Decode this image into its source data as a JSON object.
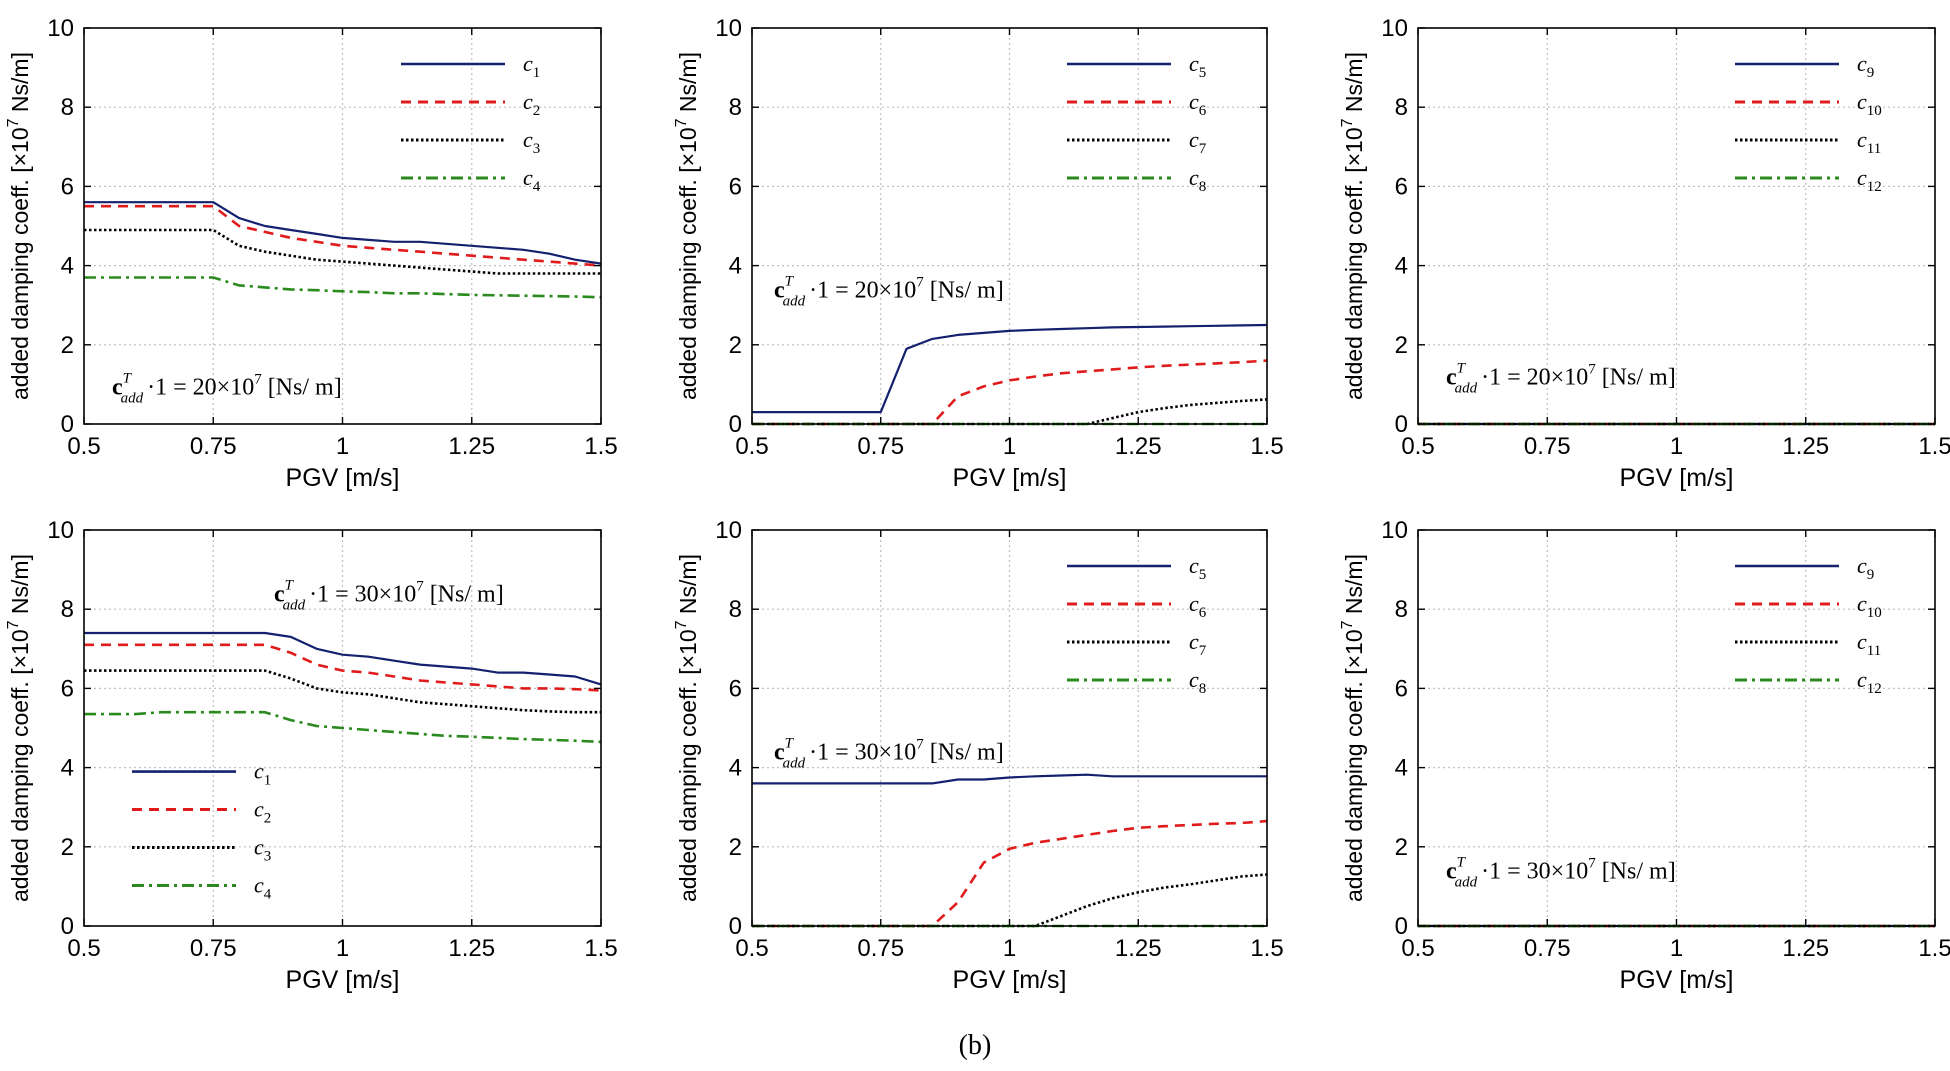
{
  "figure_caption": "(b)",
  "colors": {
    "c_blue": "#13216e",
    "c_red": "#e01b1b",
    "c_black": "#000000",
    "c_green": "#2a8a1e",
    "grid": "#bfbfbf"
  },
  "chart_data": [
    {
      "type": "line",
      "x": [
        0.5,
        0.55,
        0.6,
        0.65,
        0.7,
        0.75,
        0.8,
        0.85,
        0.9,
        0.95,
        1.0,
        1.05,
        1.1,
        1.15,
        1.2,
        1.25,
        1.3,
        1.35,
        1.4,
        1.45,
        1.5
      ],
      "xlabel": "PGV [m/s]",
      "ylabel": "added damping coeff. [×10^7 Ns/m]",
      "xlim": [
        0.5,
        1.5
      ],
      "ylim": [
        0,
        10
      ],
      "xticks": [
        "0.5",
        "0.75",
        "1",
        "1.25",
        "1.5"
      ],
      "yticks": [
        "0",
        "2",
        "4",
        "6",
        "8",
        "10"
      ],
      "grid": true,
      "legend_position": "top-right",
      "annotation": {
        "prefix": "c",
        "sup": "T",
        "sub": "add",
        "rest": "·1 = 20×10",
        "exp": "7",
        "unit": " [Ns/ m]"
      },
      "series": [
        {
          "name": "c1",
          "label": "c",
          "sub": "1",
          "style": "solid",
          "values": [
            5.6,
            5.6,
            5.6,
            5.6,
            5.6,
            5.6,
            5.2,
            5.0,
            4.9,
            4.8,
            4.7,
            4.65,
            4.6,
            4.6,
            4.55,
            4.5,
            4.45,
            4.4,
            4.3,
            4.15,
            4.05
          ]
        },
        {
          "name": "c2",
          "label": "c",
          "sub": "2",
          "style": "dashed",
          "values": [
            5.5,
            5.5,
            5.5,
            5.5,
            5.5,
            5.5,
            5.0,
            4.85,
            4.7,
            4.6,
            4.5,
            4.45,
            4.4,
            4.35,
            4.3,
            4.25,
            4.2,
            4.15,
            4.1,
            4.05,
            4.0
          ]
        },
        {
          "name": "c3",
          "label": "c",
          "sub": "3",
          "style": "dotted",
          "values": [
            4.9,
            4.9,
            4.9,
            4.9,
            4.9,
            4.9,
            4.5,
            4.35,
            4.25,
            4.15,
            4.1,
            4.05,
            4.0,
            3.95,
            3.9,
            3.85,
            3.8,
            3.8,
            3.8,
            3.8,
            3.8
          ]
        },
        {
          "name": "c4",
          "label": "c",
          "sub": "4",
          "style": "dashdot",
          "values": [
            3.7,
            3.7,
            3.7,
            3.7,
            3.7,
            3.7,
            3.5,
            3.45,
            3.4,
            3.38,
            3.35,
            3.33,
            3.3,
            3.3,
            3.28,
            3.26,
            3.25,
            3.24,
            3.23,
            3.22,
            3.2
          ]
        }
      ]
    },
    {
      "type": "line",
      "x": [
        0.5,
        0.55,
        0.6,
        0.65,
        0.7,
        0.75,
        0.8,
        0.85,
        0.9,
        0.95,
        1.0,
        1.05,
        1.1,
        1.15,
        1.2,
        1.25,
        1.3,
        1.35,
        1.4,
        1.45,
        1.5
      ],
      "xlabel": "PGV [m/s]",
      "ylabel": "added damping coeff. [×10^7 Ns/m]",
      "xlim": [
        0.5,
        1.5
      ],
      "ylim": [
        0,
        10
      ],
      "xticks": [
        "0.5",
        "0.75",
        "1",
        "1.25",
        "1.5"
      ],
      "yticks": [
        "0",
        "2",
        "4",
        "6",
        "8",
        "10"
      ],
      "grid": true,
      "legend_position": "top-right",
      "annotation": {
        "prefix": "c",
        "sup": "T",
        "sub": "add",
        "rest": "·1 = 20×10",
        "exp": "7",
        "unit": " [Ns/ m]"
      },
      "series": [
        {
          "name": "c5",
          "label": "c",
          "sub": "5",
          "style": "solid",
          "values": [
            0.3,
            0.3,
            0.3,
            0.3,
            0.3,
            0.3,
            1.9,
            2.15,
            2.25,
            2.3,
            2.35,
            2.38,
            2.4,
            2.42,
            2.44,
            2.45,
            2.46,
            2.47,
            2.48,
            2.49,
            2.5
          ]
        },
        {
          "name": "c6",
          "label": "c",
          "sub": "6",
          "style": "dashed",
          "values": [
            0,
            0,
            0,
            0,
            0,
            0,
            0,
            0,
            0.7,
            0.95,
            1.1,
            1.2,
            1.28,
            1.33,
            1.38,
            1.43,
            1.47,
            1.5,
            1.53,
            1.56,
            1.6
          ]
        },
        {
          "name": "c7",
          "label": "c",
          "sub": "7",
          "style": "dotted",
          "values": [
            0,
            0,
            0,
            0,
            0,
            0,
            0,
            0,
            0,
            0,
            0,
            0,
            0,
            0,
            0.15,
            0.3,
            0.4,
            0.48,
            0.53,
            0.58,
            0.62
          ]
        },
        {
          "name": "c8",
          "label": "c",
          "sub": "8",
          "style": "dashdot",
          "values": [
            0,
            0,
            0,
            0,
            0,
            0,
            0,
            0,
            0,
            0,
            0,
            0,
            0,
            0,
            0,
            0,
            0,
            0,
            0,
            0,
            0
          ]
        }
      ]
    },
    {
      "type": "line",
      "x": [
        0.5,
        0.55,
        0.6,
        0.65,
        0.7,
        0.75,
        0.8,
        0.85,
        0.9,
        0.95,
        1.0,
        1.05,
        1.1,
        1.15,
        1.2,
        1.25,
        1.3,
        1.35,
        1.4,
        1.45,
        1.5
      ],
      "xlabel": "PGV [m/s]",
      "ylabel": "added damping coeff. [×10^7 Ns/m]",
      "xlim": [
        0.5,
        1.5
      ],
      "ylim": [
        0,
        10
      ],
      "xticks": [
        "0.5",
        "0.75",
        "1",
        "1.25",
        "1.5"
      ],
      "yticks": [
        "0",
        "2",
        "4",
        "6",
        "8",
        "10"
      ],
      "grid": true,
      "legend_position": "top-right",
      "annotation": {
        "prefix": "c",
        "sup": "T",
        "sub": "add",
        "rest": "·1 = 20×10",
        "exp": "7",
        "unit": " [Ns/ m]"
      },
      "series": [
        {
          "name": "c9",
          "label": "c",
          "sub": "9",
          "style": "solid",
          "values": [
            0,
            0,
            0,
            0,
            0,
            0,
            0,
            0,
            0,
            0,
            0,
            0,
            0,
            0,
            0,
            0,
            0,
            0,
            0,
            0,
            0
          ]
        },
        {
          "name": "c10",
          "label": "c",
          "sub": "10",
          "style": "dashed",
          "values": [
            0,
            0,
            0,
            0,
            0,
            0,
            0,
            0,
            0,
            0,
            0,
            0,
            0,
            0,
            0,
            0,
            0,
            0,
            0,
            0,
            0
          ]
        },
        {
          "name": "c11",
          "label": "c",
          "sub": "11",
          "style": "dotted",
          "values": [
            0,
            0,
            0,
            0,
            0,
            0,
            0,
            0,
            0,
            0,
            0,
            0,
            0,
            0,
            0,
            0,
            0,
            0,
            0,
            0,
            0
          ]
        },
        {
          "name": "c12",
          "label": "c",
          "sub": "12",
          "style": "dashdot",
          "values": [
            0,
            0,
            0,
            0,
            0,
            0,
            0,
            0,
            0,
            0,
            0,
            0,
            0,
            0,
            0,
            0,
            0,
            0,
            0,
            0,
            0
          ]
        }
      ]
    },
    {
      "type": "line",
      "x": [
        0.5,
        0.55,
        0.6,
        0.65,
        0.7,
        0.75,
        0.8,
        0.85,
        0.9,
        0.95,
        1.0,
        1.05,
        1.1,
        1.15,
        1.2,
        1.25,
        1.3,
        1.35,
        1.4,
        1.45,
        1.5
      ],
      "xlabel": "PGV [m/s]",
      "ylabel": "added damping coeff. [×10^7 Ns/m]",
      "xlim": [
        0.5,
        1.5
      ],
      "ylim": [
        0,
        10
      ],
      "xticks": [
        "0.5",
        "0.75",
        "1",
        "1.25",
        "1.5"
      ],
      "yticks": [
        "0",
        "2",
        "4",
        "6",
        "8",
        "10"
      ],
      "grid": true,
      "legend_position": "bottom-left",
      "annotation": {
        "prefix": "c",
        "sup": "T",
        "sub": "add",
        "rest": "·1 = 30×10",
        "exp": "7",
        "unit": " [Ns/ m]"
      },
      "series": [
        {
          "name": "c1",
          "label": "c",
          "sub": "1",
          "style": "solid",
          "values": [
            7.4,
            7.4,
            7.4,
            7.4,
            7.4,
            7.4,
            7.4,
            7.4,
            7.3,
            7.0,
            6.85,
            6.8,
            6.7,
            6.6,
            6.55,
            6.5,
            6.4,
            6.4,
            6.35,
            6.3,
            6.1
          ]
        },
        {
          "name": "c2",
          "label": "c",
          "sub": "2",
          "style": "dashed",
          "values": [
            7.1,
            7.1,
            7.1,
            7.1,
            7.1,
            7.1,
            7.1,
            7.1,
            6.9,
            6.6,
            6.45,
            6.4,
            6.3,
            6.2,
            6.15,
            6.1,
            6.05,
            6.0,
            6.0,
            5.98,
            5.95
          ]
        },
        {
          "name": "c3",
          "label": "c",
          "sub": "3",
          "style": "dotted",
          "values": [
            6.45,
            6.45,
            6.45,
            6.45,
            6.45,
            6.45,
            6.45,
            6.45,
            6.25,
            6.0,
            5.9,
            5.85,
            5.75,
            5.65,
            5.6,
            5.55,
            5.5,
            5.45,
            5.42,
            5.4,
            5.4
          ]
        },
        {
          "name": "c4",
          "label": "c",
          "sub": "4",
          "style": "dashdot",
          "values": [
            5.35,
            5.35,
            5.35,
            5.4,
            5.4,
            5.4,
            5.4,
            5.4,
            5.2,
            5.05,
            5.0,
            4.95,
            4.9,
            4.85,
            4.8,
            4.78,
            4.75,
            4.72,
            4.7,
            4.68,
            4.65
          ]
        }
      ]
    },
    {
      "type": "line",
      "x": [
        0.5,
        0.55,
        0.6,
        0.65,
        0.7,
        0.75,
        0.8,
        0.85,
        0.9,
        0.95,
        1.0,
        1.05,
        1.1,
        1.15,
        1.2,
        1.25,
        1.3,
        1.35,
        1.4,
        1.45,
        1.5
      ],
      "xlabel": "PGV [m/s]",
      "ylabel": "added damping coeff. [×10^7 Ns/m]",
      "xlim": [
        0.5,
        1.5
      ],
      "ylim": [
        0,
        10
      ],
      "xticks": [
        "0.5",
        "0.75",
        "1",
        "1.25",
        "1.5"
      ],
      "yticks": [
        "0",
        "2",
        "4",
        "6",
        "8",
        "10"
      ],
      "grid": true,
      "legend_position": "top-right",
      "annotation": {
        "prefix": "c",
        "sup": "T",
        "sub": "add",
        "rest": "·1 = 30×10",
        "exp": "7",
        "unit": " [Ns/ m]"
      },
      "series": [
        {
          "name": "c5",
          "label": "c",
          "sub": "5",
          "style": "solid",
          "values": [
            3.6,
            3.6,
            3.6,
            3.6,
            3.6,
            3.6,
            3.6,
            3.6,
            3.7,
            3.7,
            3.75,
            3.78,
            3.8,
            3.82,
            3.78,
            3.78,
            3.78,
            3.78,
            3.78,
            3.78,
            3.78
          ]
        },
        {
          "name": "c6",
          "label": "c",
          "sub": "6",
          "style": "dashed",
          "values": [
            0,
            0,
            0,
            0,
            0,
            0,
            0,
            0,
            0.6,
            1.6,
            1.95,
            2.1,
            2.2,
            2.3,
            2.4,
            2.48,
            2.52,
            2.55,
            2.58,
            2.6,
            2.65
          ]
        },
        {
          "name": "c7",
          "label": "c",
          "sub": "7",
          "style": "dotted",
          "values": [
            0,
            0,
            0,
            0,
            0,
            0,
            0,
            0,
            0,
            0,
            0,
            0,
            0.25,
            0.5,
            0.7,
            0.85,
            0.97,
            1.05,
            1.15,
            1.25,
            1.3
          ]
        },
        {
          "name": "c8",
          "label": "c",
          "sub": "8",
          "style": "dashdot",
          "values": [
            0,
            0,
            0,
            0,
            0,
            0,
            0,
            0,
            0,
            0,
            0,
            0,
            0,
            0,
            0,
            0,
            0,
            0,
            0,
            0,
            0
          ]
        }
      ]
    },
    {
      "type": "line",
      "x": [
        0.5,
        0.55,
        0.6,
        0.65,
        0.7,
        0.75,
        0.8,
        0.85,
        0.9,
        0.95,
        1.0,
        1.05,
        1.1,
        1.15,
        1.2,
        1.25,
        1.3,
        1.35,
        1.4,
        1.45,
        1.5
      ],
      "xlabel": "PGV [m/s]",
      "ylabel": "added damping coeff. [×10^7 Ns/m]",
      "xlim": [
        0.5,
        1.5
      ],
      "ylim": [
        0,
        10
      ],
      "xticks": [
        "0.5",
        "0.75",
        "1",
        "1.25",
        "1.5"
      ],
      "yticks": [
        "0",
        "2",
        "4",
        "6",
        "8",
        "10"
      ],
      "grid": true,
      "legend_position": "top-right",
      "annotation": {
        "prefix": "c",
        "sup": "T",
        "sub": "add",
        "rest": "·1 = 30×10",
        "exp": "7",
        "unit": " [Ns/ m]"
      },
      "series": [
        {
          "name": "c9",
          "label": "c",
          "sub": "9",
          "style": "solid",
          "values": [
            0,
            0,
            0,
            0,
            0,
            0,
            0,
            0,
            0,
            0,
            0,
            0,
            0,
            0,
            0,
            0,
            0,
            0,
            0,
            0,
            0
          ]
        },
        {
          "name": "c10",
          "label": "c",
          "sub": "10",
          "style": "dashed",
          "values": [
            0,
            0,
            0,
            0,
            0,
            0,
            0,
            0,
            0,
            0,
            0,
            0,
            0,
            0,
            0,
            0,
            0,
            0,
            0,
            0,
            0
          ]
        },
        {
          "name": "c11",
          "label": "c",
          "sub": "11",
          "style": "dotted",
          "values": [
            0,
            0,
            0,
            0,
            0,
            0,
            0,
            0,
            0,
            0,
            0,
            0,
            0,
            0,
            0,
            0,
            0,
            0,
            0,
            0,
            0
          ]
        },
        {
          "name": "c12",
          "label": "c",
          "sub": "12",
          "style": "dashdot",
          "values": [
            0,
            0,
            0,
            0,
            0,
            0,
            0,
            0,
            0,
            0,
            0,
            0,
            0,
            0,
            0,
            0,
            0,
            0,
            0,
            0,
            0
          ]
        }
      ]
    }
  ]
}
